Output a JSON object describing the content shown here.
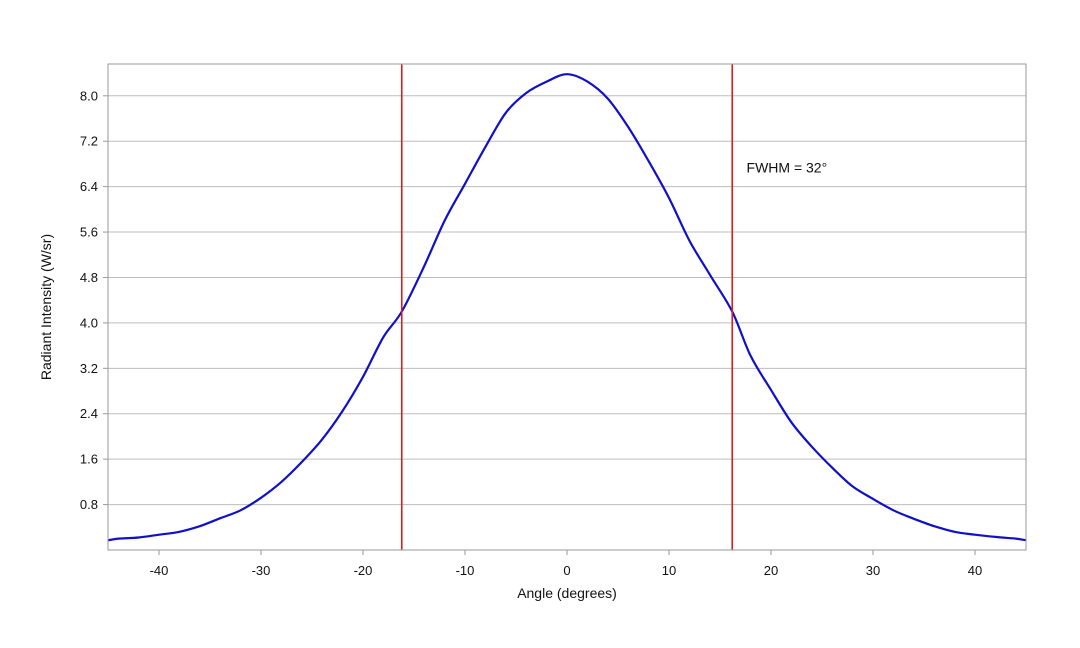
{
  "chart_data": {
    "type": "line",
    "xlabel": "Angle (degrees)",
    "ylabel": "Radiant Intensity (W/sr)",
    "xlim": [
      -45,
      45
    ],
    "ylim": [
      0,
      8.56
    ],
    "xticks": [
      -40,
      -30,
      -20,
      -10,
      0,
      10,
      20,
      30,
      40
    ],
    "xtick_labels": [
      "-40",
      "-30",
      "-20",
      "-10",
      "0",
      "10",
      "20",
      "30",
      "40"
    ],
    "yticks": [
      0.8,
      1.6,
      2.4,
      3.2,
      4.0,
      4.8,
      5.6,
      6.4,
      7.2,
      8.0
    ],
    "ytick_labels": [
      "0.8",
      "1.6",
      "2.4",
      "3.2",
      "4.0",
      "4.8",
      "5.6",
      "6.4",
      "7.2",
      "8.0"
    ],
    "grid": "horizontal",
    "annotations": [
      {
        "text": "FWHM = 32°",
        "x": 17.6,
        "y": 6.65
      }
    ],
    "vlines": [
      {
        "x": -16.2,
        "color": "#d42020"
      },
      {
        "x": 16.2,
        "color": "#d42020"
      }
    ],
    "series": [
      {
        "color": "#1010c8",
        "x": [
          -45,
          -44,
          -42,
          -40,
          -38,
          -36,
          -34,
          -32,
          -30,
          -28,
          -26,
          -24,
          -22,
          -20,
          -18,
          -16.2,
          -14,
          -12,
          -10,
          -8,
          -6,
          -4,
          -2,
          0,
          2,
          4,
          6,
          8,
          10,
          12,
          14,
          16.2,
          18,
          20,
          22,
          24,
          26,
          28,
          30,
          32,
          34,
          36,
          38,
          40,
          42,
          44,
          45
        ],
        "y": [
          0.17,
          0.2,
          0.22,
          0.27,
          0.32,
          0.42,
          0.56,
          0.7,
          0.92,
          1.2,
          1.55,
          1.95,
          2.45,
          3.05,
          3.75,
          4.2,
          5.0,
          5.8,
          6.45,
          7.1,
          7.7,
          8.05,
          8.25,
          8.38,
          8.25,
          7.95,
          7.45,
          6.85,
          6.2,
          5.45,
          4.85,
          4.2,
          3.42,
          2.82,
          2.25,
          1.82,
          1.45,
          1.12,
          0.9,
          0.7,
          0.55,
          0.42,
          0.32,
          0.27,
          0.23,
          0.2,
          0.17
        ]
      }
    ]
  }
}
